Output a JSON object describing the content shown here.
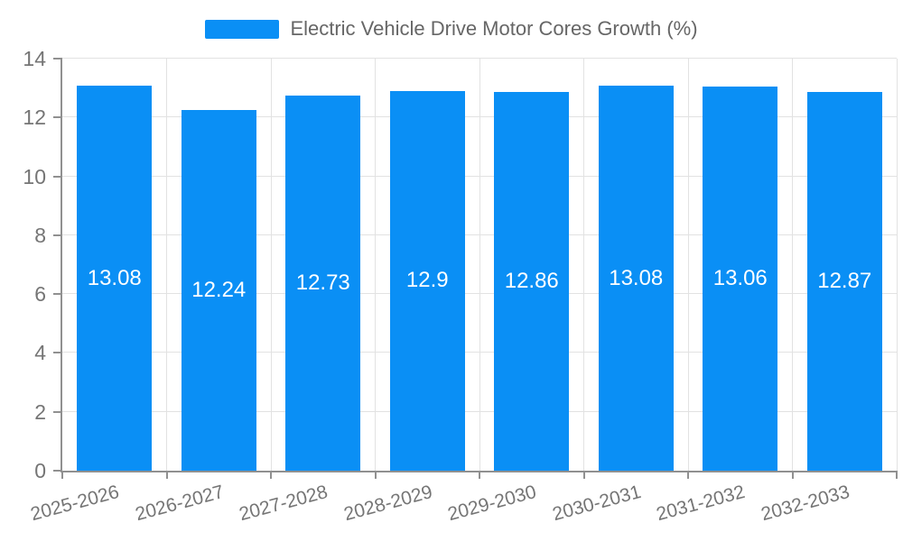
{
  "legend": {
    "items": [
      {
        "label": "Electric Vehicle Drive Motor Cores Growth (%)",
        "color": "#0A8FF5"
      }
    ],
    "position": "top-center"
  },
  "chart_data": {
    "type": "bar",
    "title": "Electric Vehicle Drive Motor Cores Growth (%)",
    "categories": [
      "2025-2026",
      "2026-2027",
      "2027-2028",
      "2028-2029",
      "2029-2030",
      "2030-2031",
      "2031-2032",
      "2032-2033"
    ],
    "values": [
      13.08,
      12.24,
      12.73,
      12.9,
      12.86,
      13.08,
      13.06,
      12.87
    ],
    "value_labels": [
      "13.08",
      "12.24",
      "12.73",
      "12.9",
      "12.86",
      "13.08",
      "13.06",
      "12.87"
    ],
    "xlabel": "",
    "ylabel": "",
    "ylim": [
      0,
      14
    ],
    "yticks": [
      0,
      2,
      4,
      6,
      8,
      10,
      12,
      14
    ],
    "grid": true,
    "legend_position": "top",
    "x_label_rotation_deg": -15,
    "colors": {
      "bar": "#0A8FF5",
      "axis": "#909090",
      "grid": "#E2E2E2",
      "tick_text": "#757575",
      "bar_label_text": "#FFFFFF",
      "legend_text": "#666666",
      "background": "#FFFFFF"
    }
  }
}
